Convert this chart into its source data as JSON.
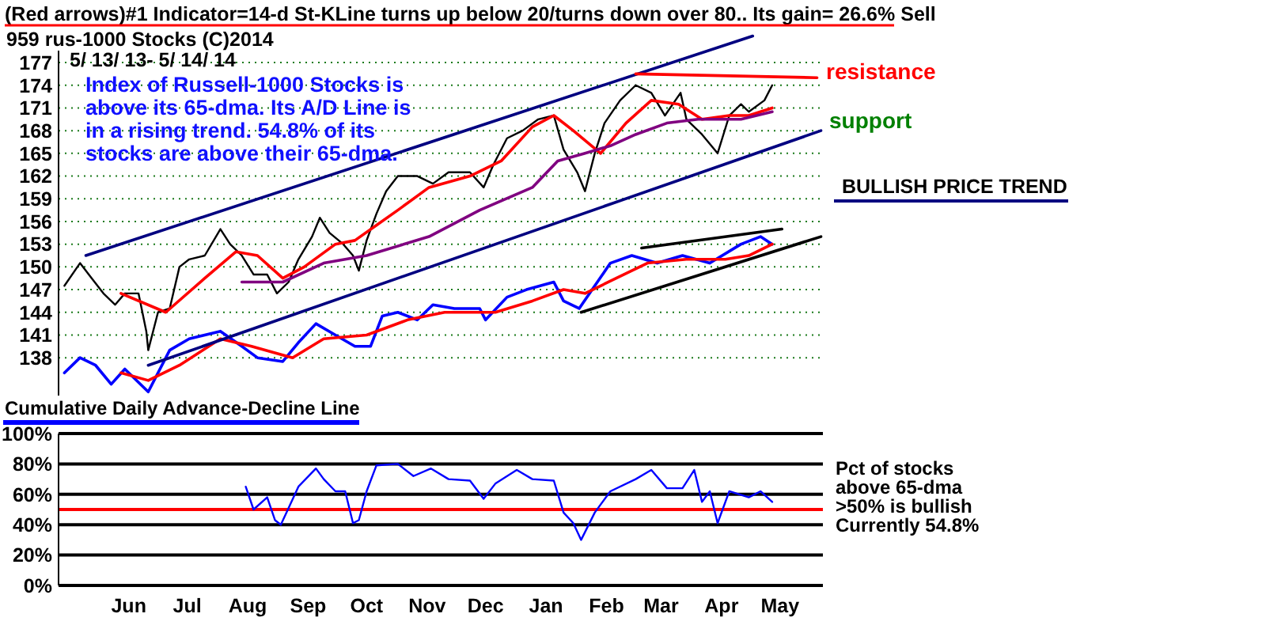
{
  "chart_data": [
    {
      "type": "line",
      "title": "(Red arrows)#1 Indicator=14-d St-KLine turns up below 20/turns down over 80.. Its gain= 26.6% Sell",
      "subtitle": "959 rus-1000 Stocks (C)2014",
      "annotations": [
        "5/ 13/ 13- 5/ 14/ 14",
        "Index of Russell-1000 Stocks is above its 65-dma. Its A/D Line is in a rising trend. 54.8% of its stocks are above their 65-dma.",
        "resistance",
        "support",
        "BULLISH PRICE TREND",
        "Cumulative Daily Advance-Decline Line"
      ],
      "xlim": [
        "2013-05-10",
        "2014-06-06"
      ],
      "ylim": [
        133,
        181.5
      ],
      "yticks": [
        138,
        141,
        144,
        147,
        150,
        153,
        156,
        159,
        162,
        165,
        168,
        171,
        174,
        177
      ],
      "tick_labels": "y",
      "grid": "y",
      "series": [
        {
          "color": "#000000",
          "x": [
            "2013-05-13",
            "2013-05-21",
            "2013-05-27",
            "2013-06-02",
            "2013-06-08",
            "2013-06-13",
            "2013-06-20",
            "2013-06-24",
            "2013-06-25",
            "2013-06-30",
            "2013-07-06",
            "2013-07-11",
            "2013-07-16",
            "2013-07-24",
            "2013-08-01",
            "2013-08-06",
            "2013-08-12",
            "2013-08-18",
            "2013-08-25",
            "2013-08-30",
            "2013-09-05",
            "2013-09-10",
            "2013-09-17",
            "2013-09-21",
            "2013-09-26",
            "2013-10-03",
            "2013-10-08",
            "2013-10-11",
            "2013-10-15",
            "2013-10-20",
            "2013-10-25",
            "2013-10-31",
            "2013-11-10",
            "2013-11-18",
            "2013-11-26",
            "2013-12-07",
            "2013-12-14",
            "2013-12-19",
            "2013-12-26",
            "2014-01-03",
            "2014-01-11",
            "2014-01-19",
            "2014-01-24",
            "2014-01-31",
            "2014-02-04",
            "2014-02-09",
            "2014-02-14",
            "2014-02-22",
            "2014-03-02",
            "2014-03-10",
            "2014-03-17",
            "2014-03-25",
            "2014-03-28",
            "2014-04-05",
            "2014-04-13",
            "2014-04-19",
            "2014-04-25",
            "2014-04-29",
            "2014-05-07",
            "2014-05-11"
          ],
          "values": [
            147.5,
            150.5,
            148.5,
            146.5,
            145,
            146.5,
            146.5,
            141.5,
            139,
            144,
            144.5,
            150,
            151,
            151.5,
            155,
            153,
            151.5,
            149,
            149,
            146.5,
            148,
            151,
            154,
            156.5,
            154.5,
            153,
            151.5,
            149.5,
            153.5,
            157,
            160,
            162,
            162,
            161,
            162.5,
            162.5,
            160.5,
            163.5,
            167,
            168,
            169.5,
            170,
            165.5,
            162.5,
            160,
            165,
            169,
            172,
            174,
            173,
            170,
            173,
            169.5,
            167.5,
            165,
            170,
            171.5,
            170.5,
            172,
            174
          ]
        },
        {
          "color": "#ff0000",
          "x": [
            "2013-06-11",
            "2013-07-04",
            "2013-07-24",
            "2013-08-09",
            "2013-08-20",
            "2013-09-02",
            "2013-09-13",
            "2013-09-29",
            "2013-10-09",
            "2013-10-20",
            "2013-10-31",
            "2013-11-16",
            "2013-12-07",
            "2013-12-23",
            "2014-01-08",
            "2014-01-19",
            "2014-01-29",
            "2014-02-12",
            "2014-02-25",
            "2014-03-10",
            "2014-03-24",
            "2014-04-05",
            "2014-04-19",
            "2014-04-29",
            "2014-05-11"
          ],
          "values": [
            146.5,
            144,
            148.5,
            152,
            151.5,
            148.5,
            150,
            153,
            153.5,
            155.5,
            157.5,
            160.5,
            162,
            164,
            168.5,
            170,
            168,
            165,
            169,
            172,
            171.5,
            169.5,
            170,
            170,
            171
          ]
        },
        {
          "color": "#800080",
          "x": [
            "2013-08-12",
            "2013-09-02",
            "2013-09-23",
            "2013-10-15",
            "2013-11-16",
            "2013-12-12",
            "2014-01-08",
            "2014-01-21",
            "2014-02-04",
            "2014-02-17",
            "2014-03-02",
            "2014-03-18",
            "2014-04-03",
            "2014-04-25",
            "2014-05-11"
          ],
          "values": [
            148,
            148,
            150.5,
            151.5,
            154,
            157.5,
            160.5,
            164,
            165,
            166,
            167.5,
            169,
            169.5,
            169.5,
            170.5
          ]
        },
        {
          "color": "#0000ff",
          "x": [
            "2013-05-13",
            "2013-05-21",
            "2013-05-29",
            "2013-06-06",
            "2013-06-13",
            "2013-06-25",
            "2013-07-06",
            "2013-07-16",
            "2013-08-01",
            "2013-08-12",
            "2013-08-20",
            "2013-09-02",
            "2013-09-10",
            "2013-09-19",
            "2013-09-29",
            "2013-10-09",
            "2013-10-17",
            "2013-10-23",
            "2013-10-31",
            "2013-11-10",
            "2013-11-18",
            "2013-11-29",
            "2013-12-12",
            "2013-12-15",
            "2013-12-26",
            "2014-01-05",
            "2014-01-19",
            "2014-01-24",
            "2014-02-01",
            "2014-02-09",
            "2014-02-17",
            "2014-02-28",
            "2014-03-13",
            "2014-03-26",
            "2014-04-09",
            "2014-04-25",
            "2014-05-05",
            "2014-05-11"
          ],
          "values": [
            136,
            138,
            137,
            134.5,
            136.5,
            133.5,
            139,
            140.5,
            141.5,
            139.5,
            138,
            137.5,
            140,
            142.5,
            141,
            139.5,
            139.5,
            143.5,
            144,
            143,
            145,
            144.5,
            144.5,
            143,
            146,
            147,
            148,
            145.5,
            144.5,
            147.5,
            150.5,
            151.5,
            150.5,
            151.5,
            150.5,
            153,
            154,
            153
          ]
        },
        {
          "color": "#ff0000",
          "x": [
            "2013-06-11",
            "2013-06-25",
            "2013-07-11",
            "2013-08-01",
            "2013-08-17",
            "2013-09-07",
            "2013-09-23",
            "2013-10-15",
            "2013-11-05",
            "2013-11-24",
            "2013-12-20",
            "2014-01-08",
            "2014-01-24",
            "2014-02-04",
            "2014-02-20",
            "2014-03-08",
            "2014-03-28",
            "2014-04-17",
            "2014-04-29",
            "2014-05-11"
          ],
          "values": [
            136,
            135,
            137,
            140.5,
            139.5,
            138,
            140.5,
            141,
            143,
            144,
            144,
            145.5,
            147,
            146.5,
            148.5,
            150.5,
            151,
            151,
            151.5,
            153
          ]
        },
        {
          "color": "#000080",
          "x": [
            "2013-05-24",
            "2014-05-01"
          ],
          "values": [
            151.5,
            180.5
          ]
        },
        {
          "color": "#000080",
          "x": [
            "2013-06-25",
            "2014-06-05"
          ],
          "values": [
            137,
            168
          ]
        },
        {
          "color": "#ff0000",
          "x": [
            "2014-03-02",
            "2014-06-03"
          ],
          "values": [
            175.5,
            175
          ]
        },
        {
          "color": "#000000",
          "x": [
            "2014-03-05",
            "2014-05-16"
          ],
          "values": [
            152.5,
            155
          ]
        },
        {
          "color": "#000000",
          "x": [
            "2014-02-02",
            "2014-06-05"
          ],
          "values": [
            144,
            154
          ]
        }
      ]
    },
    {
      "type": "line",
      "annotations": [
        "Pct of stocks above 65-dma",
        ">50% is bullish",
        "Currently  54.8%"
      ],
      "xlim": [
        "2013-05-10",
        "2014-06-06"
      ],
      "xticks": [
        {
          "value": "2013-06-15",
          "label": "Jun"
        },
        {
          "value": "2013-07-15",
          "label": "Jul"
        },
        {
          "value": "2013-08-15",
          "label": "Aug"
        },
        {
          "value": "2013-09-15",
          "label": "Sep"
        },
        {
          "value": "2013-10-15",
          "label": "Oct"
        },
        {
          "value": "2013-11-15",
          "label": "Nov"
        },
        {
          "value": "2013-12-15",
          "label": "Dec"
        },
        {
          "value": "2014-01-15",
          "label": "Jan"
        },
        {
          "value": "2014-02-15",
          "label": "Feb"
        },
        {
          "value": "2014-03-15",
          "label": "Mar"
        },
        {
          "value": "2014-04-15",
          "label": "Apr"
        },
        {
          "value": "2014-05-15",
          "label": "May"
        }
      ],
      "ylim": [
        0,
        100
      ],
      "yticks": [
        {
          "value": 0,
          "label": "0%"
        },
        {
          "value": 20,
          "label": "20%"
        },
        {
          "value": 40,
          "label": "40%"
        },
        {
          "value": 60,
          "label": "60%"
        },
        {
          "value": 80,
          "label": "80%"
        },
        {
          "value": 100,
          "label": "100%"
        }
      ],
      "grid": "y",
      "ref_lines": [
        {
          "axis": "y",
          "value": 50,
          "color": "#ff0000"
        }
      ],
      "series": [
        {
          "color": "#0000ff",
          "x": [
            "2013-08-14",
            "2013-08-18",
            "2013-08-25",
            "2013-08-29",
            "2013-09-01",
            "2013-09-05",
            "2013-09-10",
            "2013-09-19",
            "2013-09-23",
            "2013-09-29",
            "2013-10-04",
            "2013-10-08",
            "2013-10-11",
            "2013-10-15",
            "2013-10-20",
            "2013-10-31",
            "2013-11-08",
            "2013-11-17",
            "2013-11-26",
            "2013-12-07",
            "2013-12-14",
            "2013-12-20",
            "2013-12-31",
            "2014-01-08",
            "2014-01-19",
            "2014-01-24",
            "2014-01-29",
            "2014-02-02",
            "2014-02-09",
            "2014-02-17",
            "2014-03-02",
            "2014-03-10",
            "2014-03-18",
            "2014-03-26",
            "2014-04-01",
            "2014-04-05",
            "2014-04-09",
            "2014-04-13",
            "2014-04-19",
            "2014-04-29",
            "2014-05-05",
            "2014-05-11"
          ],
          "values": [
            65,
            50,
            58,
            43,
            40,
            51,
            65,
            77,
            70,
            62,
            62,
            41,
            43,
            62,
            79,
            80,
            72,
            77,
            70,
            69,
            57,
            67,
            76,
            70,
            69,
            48,
            41,
            30,
            48,
            62,
            70,
            76,
            64,
            64,
            76,
            55,
            62,
            41,
            62,
            58,
            62,
            55
          ]
        }
      ]
    }
  ]
}
